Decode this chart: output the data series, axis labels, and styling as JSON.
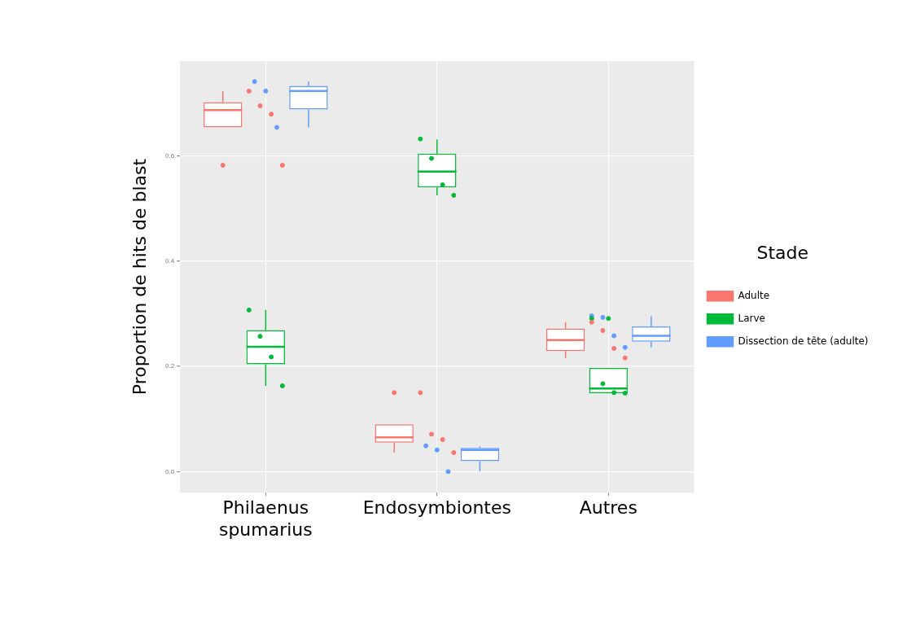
{
  "chart_data": {
    "type": "box",
    "ylabel": "Proportion de hits de blast",
    "legend_title": "Stade",
    "legend": "right",
    "grid": true,
    "categories": [
      "Philaenus spumarius",
      "Endosymbiontes",
      "Autres"
    ],
    "ylim": [
      -0.04,
      0.78
    ],
    "yticks": [
      {
        "value": 0,
        "label": "0.0"
      },
      {
        "value": 0.2,
        "label": "0.2"
      },
      {
        "value": 0.4,
        "label": "0.4"
      },
      {
        "value": 0.6,
        "label": "0.6"
      }
    ],
    "series": [
      {
        "name": "Adulte",
        "color": "#f8766d",
        "boxes": [
          {
            "low": 0.654,
            "q1": 0.654,
            "median": 0.687,
            "q3": 0.702,
            "high": 0.723,
            "outliers": [
              0.582
            ]
          },
          {
            "low": 0.036,
            "q1": 0.055,
            "median": 0.065,
            "q3": 0.09,
            "high": 0.09,
            "outliers": [
              0.15
            ]
          },
          {
            "low": 0.216,
            "q1": 0.229,
            "median": 0.25,
            "q3": 0.272,
            "high": 0.284
          }
        ]
      },
      {
        "name": "Larve",
        "color": "#00ba38",
        "boxes": [
          {
            "low": 0.163,
            "q1": 0.204,
            "median": 0.237,
            "q3": 0.269,
            "high": 0.307
          },
          {
            "low": 0.525,
            "q1": 0.54,
            "median": 0.57,
            "q3": 0.604,
            "high": 0.631
          },
          {
            "low": 0.149,
            "q1": 0.149,
            "median": 0.158,
            "q3": 0.197,
            "high": 0.197,
            "outliers": [
              0.291
            ]
          }
        ]
      },
      {
        "name": "Dissection de tête (adulte)",
        "color": "#619cff",
        "boxes": [
          {
            "low": 0.654,
            "q1": 0.688,
            "median": 0.723,
            "q3": 0.733,
            "high": 0.741
          },
          {
            "low": 0.0,
            "q1": 0.02,
            "median": 0.041,
            "q3": 0.045,
            "high": 0.048
          },
          {
            "low": 0.236,
            "q1": 0.247,
            "median": 0.258,
            "q3": 0.276,
            "high": 0.295
          }
        ]
      },
      {
        "type": "scatter",
        "color": "#f8766d",
        "x": [
          "Philaenus spumarius",
          "Philaenus spumarius",
          "Philaenus spumarius",
          "Philaenus spumarius",
          "Endosymbiontes",
          "Endosymbiontes",
          "Endosymbiontes",
          "Endosymbiontes",
          "Autres",
          "Autres",
          "Autres",
          "Autres"
        ],
        "values": [
          0.723,
          0.695,
          0.679,
          0.582,
          0.15,
          0.071,
          0.061,
          0.036,
          0.284,
          0.268,
          0.234,
          0.216
        ]
      },
      {
        "type": "scatter",
        "color": "#00ba38",
        "x": [
          "Philaenus spumarius",
          "Philaenus spumarius",
          "Philaenus spumarius",
          "Philaenus spumarius",
          "Endosymbiontes",
          "Endosymbiontes",
          "Endosymbiontes",
          "Endosymbiontes",
          "Autres",
          "Autres",
          "Autres",
          "Autres"
        ],
        "values": [
          0.307,
          0.257,
          0.218,
          0.163,
          0.632,
          0.595,
          0.545,
          0.525,
          0.291,
          0.167,
          0.15,
          0.149
        ]
      },
      {
        "type": "scatter",
        "color": "#619cff",
        "x": [
          "Philaenus spumarius",
          "Philaenus spumarius",
          "Philaenus spumarius",
          "Endosymbiontes",
          "Endosymbiontes",
          "Endosymbiontes",
          "Autres",
          "Autres",
          "Autres",
          "Autres"
        ],
        "values": [
          0.741,
          0.723,
          0.654,
          0.049,
          0.041,
          0.0,
          0.296,
          0.293,
          0.258,
          0.236
        ]
      }
    ]
  }
}
